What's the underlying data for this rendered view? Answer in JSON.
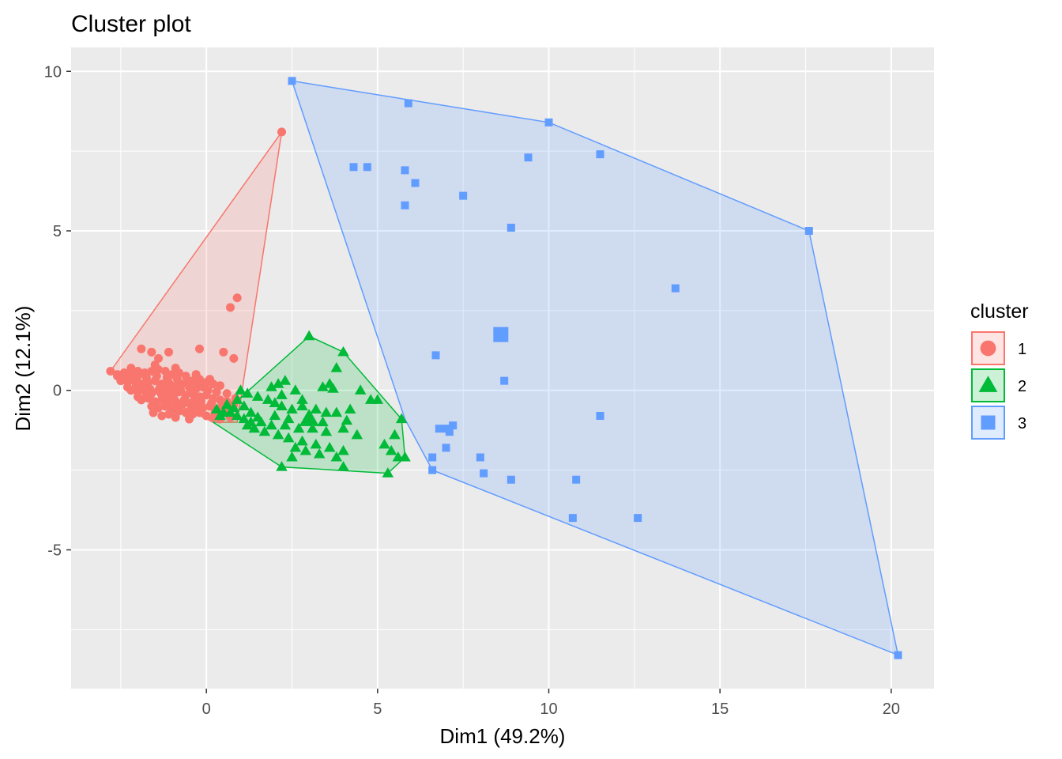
{
  "chart_data": {
    "type": "scatter",
    "title": "Cluster plot",
    "xlabel": "Dim1 (49.2%)",
    "ylabel": "Dim2 (12.1%)",
    "xlim": [
      -3.95,
      21.25
    ],
    "ylim": [
      -9.35,
      10.75
    ],
    "x_ticks": [
      0,
      5,
      10,
      15,
      20
    ],
    "x_tick_labels": [
      "0",
      "5",
      "10",
      "15",
      "20"
    ],
    "y_ticks": [
      10,
      5,
      0,
      -5
    ],
    "y_tick_labels": [
      "10",
      "5",
      "0",
      "-5"
    ],
    "grid": true,
    "legend_position": "right",
    "legend_title": "cluster",
    "series": [
      {
        "name": "1",
        "color": "#F8766D",
        "shape": "circle",
        "hull": [
          [
            -2.8,
            0.6
          ],
          [
            2.2,
            8.1
          ],
          [
            0.9,
            -1.0
          ],
          [
            0.2,
            -1.0
          ]
        ],
        "center": [
          -1.2,
          -0.1
        ],
        "points": [
          [
            2.2,
            8.1
          ],
          [
            0.9,
            2.9
          ],
          [
            0.7,
            2.6
          ],
          [
            -0.2,
            1.3
          ],
          [
            -1.9,
            1.3
          ],
          [
            -1.6,
            1.2
          ],
          [
            -1.1,
            1.2
          ],
          [
            -1.4,
            1.0
          ],
          [
            0.5,
            1.2
          ],
          [
            0.8,
            1.0
          ],
          [
            -2.8,
            0.6
          ],
          [
            -2.6,
            0.5
          ],
          [
            -2.4,
            0.55
          ],
          [
            -2.2,
            0.5
          ],
          [
            -2.0,
            0.6
          ],
          [
            -1.8,
            0.55
          ],
          [
            -1.6,
            0.6
          ],
          [
            -1.4,
            0.65
          ],
          [
            -1.2,
            0.6
          ],
          [
            -1.0,
            0.5
          ],
          [
            -0.8,
            0.55
          ],
          [
            -0.6,
            0.45
          ],
          [
            -0.4,
            0.3
          ],
          [
            -0.2,
            0.35
          ],
          [
            0.0,
            0.25
          ],
          [
            0.2,
            0.2
          ],
          [
            0.4,
            0.15
          ],
          [
            -2.5,
            0.3
          ],
          [
            -2.3,
            0.25
          ],
          [
            -2.1,
            0.3
          ],
          [
            -1.9,
            0.2
          ],
          [
            -1.7,
            0.25
          ],
          [
            -1.5,
            0.3
          ],
          [
            -1.3,
            0.2
          ],
          [
            -1.1,
            0.25
          ],
          [
            -0.9,
            0.15
          ],
          [
            -0.7,
            0.2
          ],
          [
            -0.5,
            0.1
          ],
          [
            -0.3,
            0.05
          ],
          [
            -0.1,
            0.1
          ],
          [
            -2.2,
            0.0
          ],
          [
            -2.0,
            -0.05
          ],
          [
            -1.8,
            0.0
          ],
          [
            -1.6,
            -0.1
          ],
          [
            -1.4,
            0.0
          ],
          [
            -1.2,
            -0.05
          ],
          [
            -1.0,
            -0.1
          ],
          [
            -0.8,
            -0.05
          ],
          [
            -0.6,
            -0.15
          ],
          [
            -0.4,
            -0.1
          ],
          [
            -0.2,
            -0.2
          ],
          [
            0.0,
            -0.15
          ],
          [
            0.2,
            -0.25
          ],
          [
            0.4,
            -0.3
          ],
          [
            0.6,
            -0.35
          ],
          [
            0.8,
            -0.45
          ],
          [
            -1.9,
            -0.3
          ],
          [
            -1.7,
            -0.25
          ],
          [
            -1.5,
            -0.35
          ],
          [
            -1.3,
            -0.3
          ],
          [
            -1.1,
            -0.4
          ],
          [
            -0.9,
            -0.35
          ],
          [
            -0.7,
            -0.45
          ],
          [
            -0.5,
            -0.4
          ],
          [
            -0.3,
            -0.5
          ],
          [
            -0.1,
            -0.55
          ],
          [
            0.1,
            -0.5
          ],
          [
            0.3,
            -0.6
          ],
          [
            0.5,
            -0.65
          ],
          [
            -1.6,
            -0.5
          ],
          [
            -1.4,
            -0.55
          ],
          [
            -1.2,
            -0.5
          ],
          [
            -1.0,
            -0.6
          ],
          [
            -0.8,
            -0.65
          ],
          [
            -0.6,
            -0.7
          ],
          [
            -0.4,
            -0.75
          ],
          [
            -0.2,
            -0.7
          ],
          [
            0.0,
            -0.8
          ],
          [
            0.2,
            -0.85
          ],
          [
            0.4,
            -0.9
          ],
          [
            0.7,
            -0.85
          ],
          [
            -1.3,
            -0.8
          ],
          [
            -0.9,
            -0.85
          ],
          [
            -0.5,
            -0.9
          ],
          [
            -2.6,
            0.45
          ],
          [
            -2.4,
            0.4
          ],
          [
            -2.0,
            0.45
          ],
          [
            -1.75,
            0.4
          ],
          [
            -1.45,
            0.45
          ],
          [
            -1.15,
            0.4
          ],
          [
            -0.85,
            0.35
          ],
          [
            -0.55,
            0.3
          ],
          [
            -0.25,
            0.2
          ],
          [
            0.05,
            0.0
          ],
          [
            0.3,
            -0.05
          ],
          [
            0.6,
            -0.1
          ],
          [
            -2.3,
            0.1
          ],
          [
            -2.05,
            0.15
          ],
          [
            -1.85,
            0.1
          ],
          [
            -1.65,
            0.05
          ],
          [
            -1.35,
            0.1
          ],
          [
            -1.05,
            0.05
          ],
          [
            -0.75,
            0.0
          ],
          [
            -0.45,
            -0.05
          ],
          [
            -0.15,
            -0.35
          ],
          [
            0.15,
            -0.4
          ],
          [
            0.45,
            -0.5
          ],
          [
            -1.75,
            -0.15
          ],
          [
            -1.25,
            -0.2
          ],
          [
            -0.95,
            -0.25
          ],
          [
            -0.65,
            -0.3
          ],
          [
            -0.35,
            -0.3
          ],
          [
            0.65,
            -0.75
          ],
          [
            -1.55,
            -0.7
          ],
          [
            -0.85,
            -0.5
          ],
          [
            -2.2,
            0.7
          ],
          [
            -1.5,
            0.8
          ],
          [
            -0.9,
            0.7
          ],
          [
            -0.3,
            0.5
          ],
          [
            0.1,
            0.35
          ],
          [
            -2.0,
            -0.2
          ],
          [
            -1.1,
            -0.75
          ],
          [
            -0.45,
            -0.6
          ],
          [
            0.85,
            -0.25
          ],
          [
            0.25,
            -0.7
          ]
        ]
      },
      {
        "name": "2",
        "color": "#00BA38",
        "shape": "triangle",
        "hull": [
          [
            0.2,
            -1.0
          ],
          [
            2.2,
            -2.4
          ],
          [
            5.3,
            -2.6
          ],
          [
            5.8,
            -2.1
          ],
          [
            5.7,
            -0.9
          ],
          [
            4.0,
            1.2
          ],
          [
            3.0,
            1.7
          ]
        ],
        "center": [
          3.0,
          -0.9
        ],
        "points": [
          [
            3.0,
            1.7
          ],
          [
            4.0,
            1.2
          ],
          [
            3.8,
            0.7
          ],
          [
            2.3,
            0.3
          ],
          [
            2.1,
            0.2
          ],
          [
            1.9,
            0.1
          ],
          [
            2.6,
            0.0
          ],
          [
            3.4,
            0.1
          ],
          [
            3.6,
            0.2
          ],
          [
            4.5,
            0.0
          ],
          [
            4.8,
            -0.3
          ],
          [
            5.0,
            -0.3
          ],
          [
            1.0,
            0.0
          ],
          [
            1.2,
            -0.1
          ],
          [
            1.5,
            -0.2
          ],
          [
            1.8,
            -0.3
          ],
          [
            2.0,
            -0.4
          ],
          [
            2.2,
            -0.5
          ],
          [
            2.5,
            -0.6
          ],
          [
            2.8,
            -0.5
          ],
          [
            3.2,
            -0.6
          ],
          [
            3.5,
            -0.7
          ],
          [
            3.8,
            -0.7
          ],
          [
            4.2,
            -0.6
          ],
          [
            0.3,
            -0.6
          ],
          [
            0.5,
            -0.7
          ],
          [
            0.7,
            -0.7
          ],
          [
            0.9,
            -0.8
          ],
          [
            1.1,
            -0.9
          ],
          [
            1.3,
            -1.0
          ],
          [
            1.6,
            -1.0
          ],
          [
            1.9,
            -1.1
          ],
          [
            2.3,
            -1.1
          ],
          [
            2.7,
            -1.2
          ],
          [
            3.1,
            -1.2
          ],
          [
            3.5,
            -1.3
          ],
          [
            4.0,
            -1.2
          ],
          [
            4.4,
            -1.4
          ],
          [
            1.4,
            -1.2
          ],
          [
            1.7,
            -1.3
          ],
          [
            2.1,
            -1.4
          ],
          [
            2.4,
            -1.5
          ],
          [
            2.8,
            -1.6
          ],
          [
            3.2,
            -1.7
          ],
          [
            3.6,
            -1.8
          ],
          [
            4.0,
            -1.9
          ],
          [
            2.6,
            -1.8
          ],
          [
            2.9,
            -1.9
          ],
          [
            3.3,
            -2.0
          ],
          [
            3.8,
            -2.1
          ],
          [
            2.5,
            -2.1
          ],
          [
            2.2,
            -2.4
          ],
          [
            4.0,
            -2.4
          ],
          [
            5.3,
            -2.6
          ],
          [
            5.4,
            -1.9
          ],
          [
            5.6,
            -2.1
          ],
          [
            5.8,
            -2.1
          ],
          [
            5.5,
            -1.4
          ],
          [
            5.7,
            -0.9
          ],
          [
            5.2,
            -1.7
          ],
          [
            0.9,
            -0.3
          ],
          [
            1.1,
            -0.5
          ],
          [
            1.3,
            -0.7
          ],
          [
            2.0,
            -0.8
          ],
          [
            2.4,
            -0.9
          ],
          [
            2.2,
            -0.15
          ],
          [
            2.8,
            -0.3
          ],
          [
            3.0,
            -0.95
          ],
          [
            0.6,
            -0.45
          ],
          [
            0.8,
            -0.55
          ],
          [
            1.5,
            -0.85
          ],
          [
            3.4,
            -1.0
          ],
          [
            3.7,
            0.05
          ],
          [
            4.1,
            -0.95
          ],
          [
            1.2,
            -1.1
          ],
          [
            0.4,
            -0.8
          ]
        ]
      },
      {
        "name": "3",
        "color": "#619CFF",
        "shape": "square",
        "hull": [
          [
            2.5,
            9.7
          ],
          [
            10.0,
            8.4
          ],
          [
            17.6,
            5.0
          ],
          [
            20.2,
            -8.3
          ],
          [
            6.6,
            -2.5
          ],
          [
            5.8,
            -0.9
          ]
        ],
        "center": [
          8.6,
          1.75
        ],
        "points": [
          [
            2.5,
            9.7
          ],
          [
            5.9,
            9.0
          ],
          [
            10.0,
            8.4
          ],
          [
            9.4,
            7.3
          ],
          [
            11.5,
            7.4
          ],
          [
            4.3,
            7.0
          ],
          [
            4.7,
            7.0
          ],
          [
            5.8,
            6.9
          ],
          [
            6.1,
            6.5
          ],
          [
            7.5,
            6.1
          ],
          [
            5.8,
            5.8
          ],
          [
            8.9,
            5.1
          ],
          [
            17.6,
            5.0
          ],
          [
            13.7,
            3.2
          ],
          [
            6.7,
            1.1
          ],
          [
            8.7,
            0.3
          ],
          [
            11.5,
            -0.8
          ],
          [
            7.2,
            -1.1
          ],
          [
            6.8,
            -1.2
          ],
          [
            7.0,
            -1.2
          ],
          [
            7.1,
            -1.3
          ],
          [
            6.6,
            -2.1
          ],
          [
            7.0,
            -1.8
          ],
          [
            8.0,
            -2.1
          ],
          [
            6.6,
            -2.5
          ],
          [
            8.1,
            -2.6
          ],
          [
            8.9,
            -2.8
          ],
          [
            10.8,
            -2.8
          ],
          [
            10.7,
            -4.0
          ],
          [
            12.6,
            -4.0
          ],
          [
            20.2,
            -8.3
          ]
        ]
      }
    ]
  }
}
